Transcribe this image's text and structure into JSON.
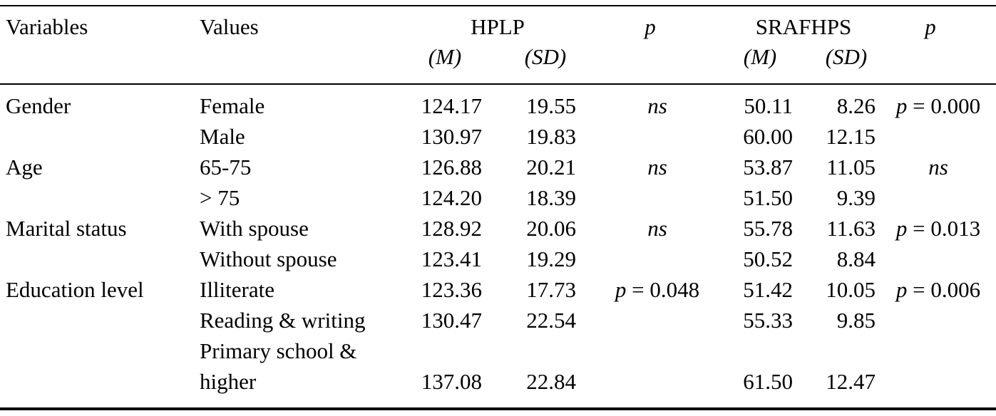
{
  "table": {
    "header": {
      "variables": "Variables",
      "values": "Values",
      "hplp": "HPLP",
      "hplp_p": "p",
      "srafhps": "SRAFHPS",
      "srafhps_p": "p",
      "hplp_m": "(M)",
      "hplp_sd": "(SD)",
      "srafhps_m": "(M)",
      "srafhps_sd": "(SD)"
    },
    "rows": [
      [
        "Gender",
        "Female",
        "124.17",
        "19.55",
        "ns",
        "50.11",
        "8.26",
        "p = 0.000"
      ],
      [
        null,
        "Male",
        "130.97",
        "19.83",
        null,
        "60.00",
        "12.15",
        null
      ],
      [
        "Age",
        "65-75",
        "126.88",
        "20.21",
        "ns",
        "53.87",
        "11.05",
        "ns"
      ],
      [
        null,
        "> 75",
        "124.20",
        "18.39",
        null,
        "51.50",
        "9.39",
        null
      ],
      [
        "Marital status",
        "With spouse",
        "128.92",
        "20.06",
        "ns",
        "55.78",
        "11.63",
        "p = 0.013"
      ],
      [
        null,
        "Without spouse",
        "123.41",
        "19.29",
        null,
        "50.52",
        "8.84",
        null
      ],
      [
        "Education level",
        "Illiterate",
        "123.36",
        "17.73",
        "p = 0.048",
        "51.42",
        "10.05",
        "p = 0.006"
      ],
      [
        null,
        "Reading & writing",
        "130.47",
        "22.54",
        null,
        "55.33",
        "9.85",
        null
      ],
      [
        null,
        "Primary school & higher",
        "137.08",
        "22.84",
        null,
        "61.50",
        "12.47",
        null
      ]
    ]
  }
}
